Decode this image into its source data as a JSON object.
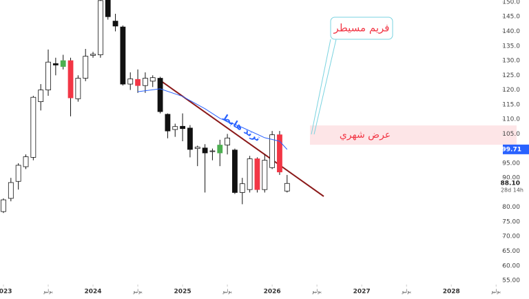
{
  "chart_data": {
    "type": "candlestick",
    "xlim": [
      -0.46,
      66.9
    ],
    "xticks": [
      {
        "value": 0,
        "label": "2023"
      },
      {
        "value": 6,
        "label": "يوليو"
      },
      {
        "value": 12,
        "label": "2024"
      },
      {
        "value": 18,
        "label": "يوليو"
      },
      {
        "value": 24,
        "label": "2025"
      },
      {
        "value": 30,
        "label": "يوليو"
      },
      {
        "value": 36,
        "label": "2026"
      },
      {
        "value": 42,
        "label": "يوليو"
      },
      {
        "value": 48,
        "label": "2027"
      },
      {
        "value": 54,
        "label": "يوليو"
      },
      {
        "value": 60,
        "label": "2028"
      },
      {
        "value": 66,
        "label": "يوليو"
      }
    ],
    "ylim": [
      54.3,
      150.7
    ],
    "yticks": [
      {
        "value": 55,
        "label": "55.00"
      },
      {
        "value": 60,
        "label": "60.00"
      },
      {
        "value": 65,
        "label": "65.00"
      },
      {
        "value": 70,
        "label": "70.00"
      },
      {
        "value": 75,
        "label": "75.00"
      },
      {
        "value": 80,
        "label": "80.00"
      },
      {
        "value": 85,
        "label": "85.00"
      },
      {
        "value": 90,
        "label": "90.00"
      },
      {
        "value": 95,
        "label": "95.00"
      },
      {
        "value": 100,
        "label": "100.0"
      },
      {
        "value": 105,
        "label": "105.0"
      },
      {
        "value": 110,
        "label": "110.0"
      },
      {
        "value": 115,
        "label": "115.0"
      },
      {
        "value": 120,
        "label": "120.0"
      },
      {
        "value": 125,
        "label": "125.0"
      },
      {
        "value": 130,
        "label": "130.0"
      },
      {
        "value": 135,
        "label": "135.0"
      },
      {
        "value": 140,
        "label": "140.0"
      },
      {
        "value": 145,
        "label": "145.0"
      },
      {
        "value": 150,
        "label": "150.0"
      }
    ],
    "open": [
      78.5,
      83,
      88.8,
      93.8,
      97,
      116,
      120,
      129,
      128,
      130,
      117,
      124,
      131.8,
      132,
      151,
      143.5,
      141.5,
      122,
      123.6,
      121.5,
      123,
      124,
      111.7,
      107.5,
      107.6,
      107,
      100.5,
      100.2,
      99.2,
      98.5,
      101.2,
      99.5,
      85,
      86,
      96.5,
      86,
      93.5,
      104.7,
      85.5
    ],
    "high": [
      83,
      90,
      95,
      98,
      118,
      122,
      133.8,
      131,
      132,
      131,
      125,
      134,
      133,
      153,
      153,
      146,
      142,
      126,
      127,
      126,
      125,
      124.5,
      112,
      108.5,
      112,
      108,
      101,
      101.5,
      100,
      103,
      105,
      100,
      90,
      97.5,
      97,
      98,
      106,
      106,
      91
    ],
    "low": [
      78,
      82,
      86,
      93,
      96,
      113,
      118,
      125,
      127,
      111,
      116,
      123,
      131,
      131,
      144,
      140,
      121.5,
      120,
      119,
      119,
      121,
      112,
      103.5,
      104,
      102.5,
      97,
      94,
      85,
      96,
      94,
      98,
      84.5,
      81,
      85,
      85,
      85,
      93,
      91,
      85
    ],
    "close": [
      82.5,
      88.4,
      94.3,
      97.2,
      117.5,
      120,
      129.5,
      128.5,
      130,
      117.3,
      124,
      131.5,
      132.2,
      150.5,
      145,
      141.8,
      122,
      123.8,
      121.5,
      124,
      124.2,
      112.6,
      106,
      106.5,
      106.8,
      99.7,
      100,
      98.5,
      99,
      101.2,
      103.6,
      85,
      88,
      96.5,
      86,
      96,
      104.7,
      92,
      88.1
    ],
    "colors": [
      "#ffffff",
      "#ffffff",
      "#ffffff",
      "#ffffff",
      "#ffffff",
      "#ffffff",
      "#ffffff",
      "#111111",
      "#4caf50",
      "#f23645",
      "#ffffff",
      "#ffffff",
      "#ffffff",
      "#ffffff",
      "#111111",
      "#111111",
      "#111111",
      "#ffffff",
      "#f23645",
      "#ffffff",
      "#ffffff",
      "#111111",
      "#111111",
      "#ffffff",
      "#111111",
      "#111111",
      "#ffffff",
      "#111111",
      "#ffffff",
      "#4caf50",
      "#ffffff",
      "#111111",
      "#ffffff",
      "#ffffff",
      "#f23645",
      "#ffffff",
      "#ffffff",
      "#f23645",
      "#ffffff"
    ],
    "moving_average": {
      "color": "#2962ff",
      "x": [
        18,
        21,
        24,
        27,
        29,
        32,
        35,
        37,
        38
      ],
      "values": [
        119.4,
        120.4,
        117.8,
        113.6,
        110.3,
        107.2,
        103.7,
        102.5,
        99.71
      ]
    },
    "ma_label": {
      "value": 99.71,
      "label": "99.71"
    },
    "last_price": {
      "value": 88.1,
      "label": "88.10"
    },
    "countdown": "28d 14h",
    "zone": {
      "label": "عرض شهري",
      "range": [
        101.3,
        107.9
      ],
      "color": "#f23645"
    },
    "trend_label": "ترند هابط",
    "callout": "فريم مسيطر"
  }
}
